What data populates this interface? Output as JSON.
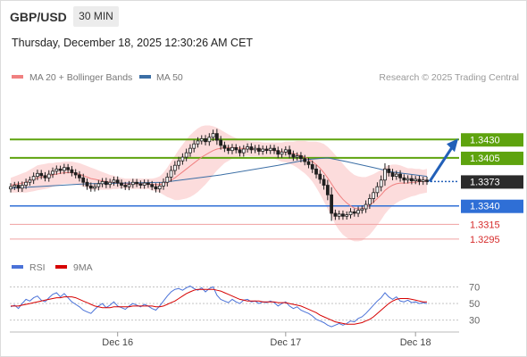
{
  "header": {
    "pair": "GBP/USD",
    "timeframe": "30 MIN",
    "timestamp": "Thursday, December 18, 2025 12:30:26 AM CET"
  },
  "legend": {
    "ma20_bb": "MA 20 + Bollinger Bands",
    "ma50": "MA 50",
    "source": "Research © 2025 Trading Central",
    "rsi": "RSI",
    "rsi_ma": "9MA"
  },
  "colors": {
    "resistance": "#5ea30e",
    "support": "#2f6fd6",
    "support_light": "#f0a0a0",
    "support_light_text": "#d62b2b",
    "bollinger_fill": "#fcdcdc",
    "ma20": "#f08080",
    "ma50": "#3b6ea5",
    "candle": "#1f1f1f",
    "rsi": "#4a72d8",
    "rsi_ma": "#d60000",
    "arrow": "#2260b8",
    "label_dark": "#2b2b2b"
  },
  "chart_data": [
    {
      "type": "candlestick",
      "title": "GBP/USD",
      "x_labels": [
        "Dec 16",
        "Dec 17",
        "Dec 18"
      ],
      "ylim": [
        1.3278,
        1.3498
      ],
      "levels": [
        {
          "value": 1.343,
          "label": "1.3430",
          "kind": "resistance"
        },
        {
          "value": 1.3405,
          "label": "1.3405",
          "kind": "resistance"
        },
        {
          "value": 1.334,
          "label": "1.3340",
          "kind": "support"
        },
        {
          "value": 1.3315,
          "label": "1.3315",
          "kind": "support_light"
        },
        {
          "value": 1.3295,
          "label": "1.3295",
          "kind": "support_light"
        }
      ],
      "current_price": {
        "value": 1.3373,
        "label": "1.3373"
      },
      "projection": {
        "from": 1.3373,
        "to": 1.343,
        "direction": "up"
      },
      "close": [
        1.3366,
        1.3368,
        1.3364,
        1.3368,
        1.3372,
        1.3375,
        1.338,
        1.3384,
        1.3381,
        1.3378,
        1.3383,
        1.3387,
        1.339,
        1.3388,
        1.3392,
        1.3389,
        1.3385,
        1.3382,
        1.3378,
        1.3372,
        1.3367,
        1.3364,
        1.3366,
        1.337,
        1.3373,
        1.3369,
        1.3372,
        1.3375,
        1.3371,
        1.3368,
        1.3366,
        1.3369,
        1.3372,
        1.337,
        1.3368,
        1.3371,
        1.3369,
        1.3366,
        1.3363,
        1.3367,
        1.3372,
        1.3379,
        1.3388,
        1.3395,
        1.3401,
        1.3406,
        1.3412,
        1.3418,
        1.3424,
        1.3428,
        1.3431,
        1.3427,
        1.3433,
        1.3438,
        1.3429,
        1.3422,
        1.3418,
        1.3415,
        1.3419,
        1.3416,
        1.3412,
        1.3417,
        1.342,
        1.3416,
        1.3418,
        1.3414,
        1.3417,
        1.3415,
        1.3418,
        1.3415,
        1.341,
        1.3413,
        1.3416,
        1.341,
        1.3406,
        1.3408,
        1.3404,
        1.34,
        1.3396,
        1.339,
        1.3383,
        1.3376,
        1.3368,
        1.3355,
        1.333,
        1.3326,
        1.3329,
        1.3326,
        1.3328,
        1.3332,
        1.333,
        1.3334,
        1.3336,
        1.3342,
        1.335,
        1.3358,
        1.3366,
        1.3375,
        1.339,
        1.3385,
        1.338,
        1.3383,
        1.3378,
        1.3375,
        1.3377,
        1.3374,
        1.3376,
        1.3373,
        1.3375,
        1.3373
      ],
      "ma20": [
        1.3368,
        1.3369,
        1.337,
        1.3371,
        1.3372,
        1.3374,
        1.3376,
        1.3378,
        1.3379,
        1.338,
        1.3381,
        1.3382,
        1.3383,
        1.3384,
        1.3385,
        1.3385,
        1.3385,
        1.3384,
        1.3383,
        1.3381,
        1.3379,
        1.3377,
        1.3376,
        1.3375,
        1.3374,
        1.3373,
        1.3372,
        1.3372,
        1.3371,
        1.3371,
        1.337,
        1.337,
        1.337,
        1.337,
        1.337,
        1.337,
        1.337,
        1.3369,
        1.3369,
        1.3369,
        1.337,
        1.3372,
        1.3375,
        1.3378,
        1.3382,
        1.3386,
        1.339,
        1.3394,
        1.3398,
        1.3402,
        1.3406,
        1.3409,
        1.3412,
        1.3415,
        1.3417,
        1.3418,
        1.3419,
        1.3419,
        1.3419,
        1.3419,
        1.3418,
        1.3418,
        1.3418,
        1.3417,
        1.3417,
        1.3417,
        1.3416,
        1.3416,
        1.3416,
        1.3415,
        1.3414,
        1.3413,
        1.3413,
        1.3412,
        1.3411,
        1.341,
        1.3408,
        1.3406,
        1.3403,
        1.34,
        1.3396,
        1.3391,
        1.3385,
        1.3378,
        1.337,
        1.3362,
        1.3355,
        1.3349,
        1.3344,
        1.334,
        1.3337,
        1.3336,
        1.3336,
        1.3338,
        1.3341,
        1.3345,
        1.335,
        1.3355,
        1.3361,
        1.3365,
        1.3368,
        1.337,
        1.3371,
        1.3371,
        1.3371,
        1.3372,
        1.3372,
        1.3373,
        1.3373,
        1.3374
      ],
      "bb_width": [
        0.001,
        0.0011,
        0.0012,
        0.0013,
        0.0014,
        0.0015,
        0.0016,
        0.0017,
        0.0017,
        0.0017,
        0.0017,
        0.0016,
        0.0016,
        0.0015,
        0.0015,
        0.0015,
        0.0015,
        0.0015,
        0.0015,
        0.0015,
        0.0015,
        0.0015,
        0.0014,
        0.0013,
        0.0012,
        0.0011,
        0.001,
        0.0009,
        0.0008,
        0.0007,
        0.0007,
        0.0007,
        0.0007,
        0.0007,
        0.0007,
        0.0007,
        0.0007,
        0.0008,
        0.0009,
        0.0011,
        0.0015,
        0.002,
        0.0025,
        0.003,
        0.0034,
        0.0037,
        0.004,
        0.0042,
        0.0043,
        0.0043,
        0.0042,
        0.004,
        0.0037,
        0.0033,
        0.0029,
        0.0025,
        0.0021,
        0.0018,
        0.0015,
        0.0013,
        0.0012,
        0.0011,
        0.001,
        0.001,
        0.001,
        0.001,
        0.001,
        0.001,
        0.001,
        0.0011,
        0.0012,
        0.0013,
        0.0014,
        0.0015,
        0.0016,
        0.0018,
        0.002,
        0.0022,
        0.0024,
        0.0027,
        0.0031,
        0.0035,
        0.0039,
        0.0042,
        0.0045,
        0.0047,
        0.0048,
        0.0048,
        0.0047,
        0.0046,
        0.0045,
        0.0044,
        0.0043,
        0.0041,
        0.004,
        0.0038,
        0.0036,
        0.0034,
        0.0032,
        0.003,
        0.0028,
        0.0026,
        0.0024,
        0.0022,
        0.002,
        0.0019,
        0.0018,
        0.0017,
        0.0016,
        0.0016
      ],
      "ma50": [
        [
          0,
          1.3364
        ],
        [
          20,
          1.337
        ],
        [
          40,
          1.3372
        ],
        [
          55,
          1.3382
        ],
        [
          70,
          1.3395
        ],
        [
          78,
          1.3403
        ],
        [
          83,
          1.3405
        ],
        [
          88,
          1.34
        ],
        [
          95,
          1.3392
        ],
        [
          100,
          1.3386
        ],
        [
          109,
          1.338
        ]
      ]
    },
    {
      "type": "line",
      "title": "RSI",
      "ylim": [
        20,
        78
      ],
      "y_ticks": [
        70,
        50,
        30
      ],
      "series": [
        {
          "name": "RSI",
          "values": [
            46,
            48,
            44,
            50,
            55,
            53,
            57,
            59,
            54,
            52,
            57,
            61,
            63,
            58,
            62,
            57,
            52,
            49,
            46,
            42,
            40,
            38,
            43,
            47,
            50,
            45,
            48,
            52,
            47,
            45,
            43,
            47,
            50,
            48,
            46,
            49,
            47,
            44,
            42,
            47,
            53,
            59,
            64,
            67,
            68,
            66,
            69,
            71,
            68,
            66,
            69,
            64,
            68,
            70,
            60,
            55,
            53,
            51,
            55,
            52,
            50,
            54,
            55,
            52,
            53,
            50,
            52,
            51,
            53,
            51,
            47,
            50,
            52,
            47,
            44,
            46,
            42,
            40,
            38,
            35,
            31,
            29,
            27,
            24,
            22,
            24,
            26,
            24,
            26,
            29,
            28,
            32,
            34,
            38,
            43,
            48,
            53,
            57,
            63,
            58,
            55,
            58,
            53,
            52,
            54,
            51,
            52,
            50,
            51,
            50
          ]
        },
        {
          "name": "9MA",
          "values": [
            47,
            47,
            47,
            48,
            49,
            50,
            51,
            52,
            53,
            54,
            55,
            56,
            57,
            57,
            58,
            58,
            58,
            57,
            55,
            53,
            51,
            49,
            47,
            46,
            45,
            45,
            45,
            46,
            46,
            46,
            46,
            46,
            47,
            47,
            47,
            47,
            47,
            47,
            46,
            46,
            47,
            49,
            51,
            53,
            56,
            59,
            62,
            64,
            66,
            67,
            67,
            67,
            67,
            67,
            66,
            65,
            63,
            61,
            59,
            57,
            55,
            54,
            53,
            53,
            53,
            53,
            52,
            52,
            52,
            52,
            51,
            51,
            51,
            50,
            49,
            48,
            47,
            45,
            43,
            41,
            39,
            36,
            34,
            32,
            30,
            28,
            27,
            26,
            25,
            25,
            25,
            26,
            27,
            29,
            31,
            34,
            38,
            42,
            46,
            50,
            53,
            55,
            56,
            56,
            56,
            55,
            54,
            53,
            52,
            52
          ]
        }
      ]
    }
  ]
}
